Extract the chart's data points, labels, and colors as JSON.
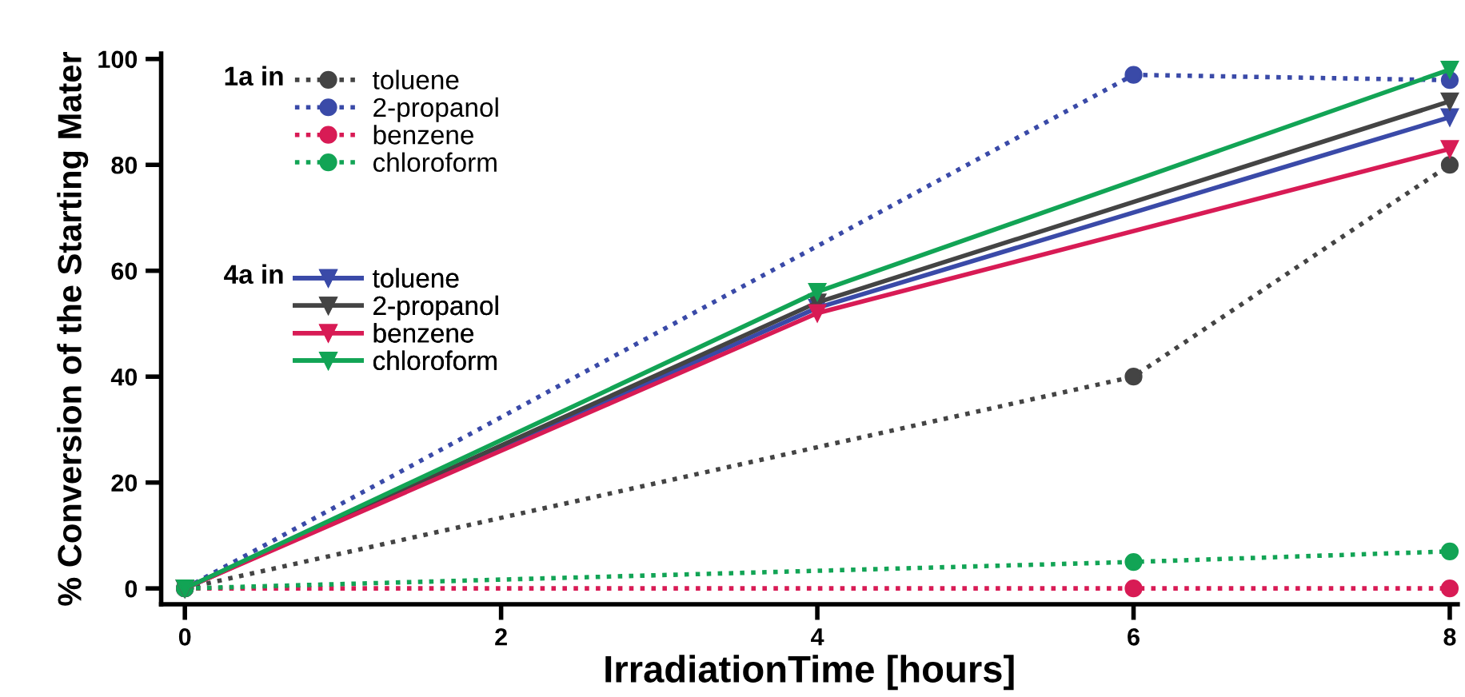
{
  "chart_data": {
    "type": "line",
    "xlabel": "IrradiationTime [hours]",
    "ylabel": "% Conversion of the Starting Mater",
    "xlim": [
      -0.15,
      8.05
    ],
    "ylim": [
      -3,
      101
    ],
    "xticks": [
      0,
      2,
      4,
      6,
      8
    ],
    "yticks": [
      0,
      20,
      40,
      60,
      80,
      100
    ],
    "grid": false,
    "legend": "top left",
    "annotations": [
      "1a in",
      "4a in"
    ],
    "series": [
      {
        "name": "toluene",
        "color": "#444444",
        "x": [
          0,
          6,
          8
        ],
        "values": [
          0,
          40,
          80
        ],
        "line_style": "dotted",
        "marker": "circle"
      },
      {
        "name": "2-propanol",
        "color": "#3a4aa8",
        "x": [
          0,
          6,
          8
        ],
        "values": [
          0,
          97,
          96
        ],
        "line_style": "dotted",
        "marker": "circle"
      },
      {
        "name": "benzene",
        "color": "#d81b55",
        "x": [
          0,
          6,
          8
        ],
        "values": [
          0,
          0,
          0
        ],
        "line_style": "dotted",
        "marker": "circle"
      },
      {
        "name": "chloroform",
        "color": "#12a455",
        "x": [
          0,
          6,
          8
        ],
        "values": [
          0,
          5,
          7
        ],
        "line_style": "dotted",
        "marker": "circle"
      },
      {
        "name": "toluene",
        "color": "#3a4aa8",
        "x": [
          0,
          4,
          8
        ],
        "values": [
          0,
          53,
          89
        ],
        "line_style": "solid",
        "marker": "triangle"
      },
      {
        "name": "2-propanol",
        "color": "#444444",
        "x": [
          0,
          4,
          8
        ],
        "values": [
          0,
          54,
          92
        ],
        "line_style": "solid",
        "marker": "triangle"
      },
      {
        "name": "benzene",
        "color": "#d81b55",
        "x": [
          0,
          4,
          8
        ],
        "values": [
          0,
          52,
          83
        ],
        "line_style": "solid",
        "marker": "triangle"
      },
      {
        "name": "chloroform",
        "color": "#12a455",
        "x": [
          0,
          4,
          8
        ],
        "values": [
          0,
          56,
          98
        ],
        "line_style": "solid",
        "marker": "triangle"
      }
    ]
  }
}
